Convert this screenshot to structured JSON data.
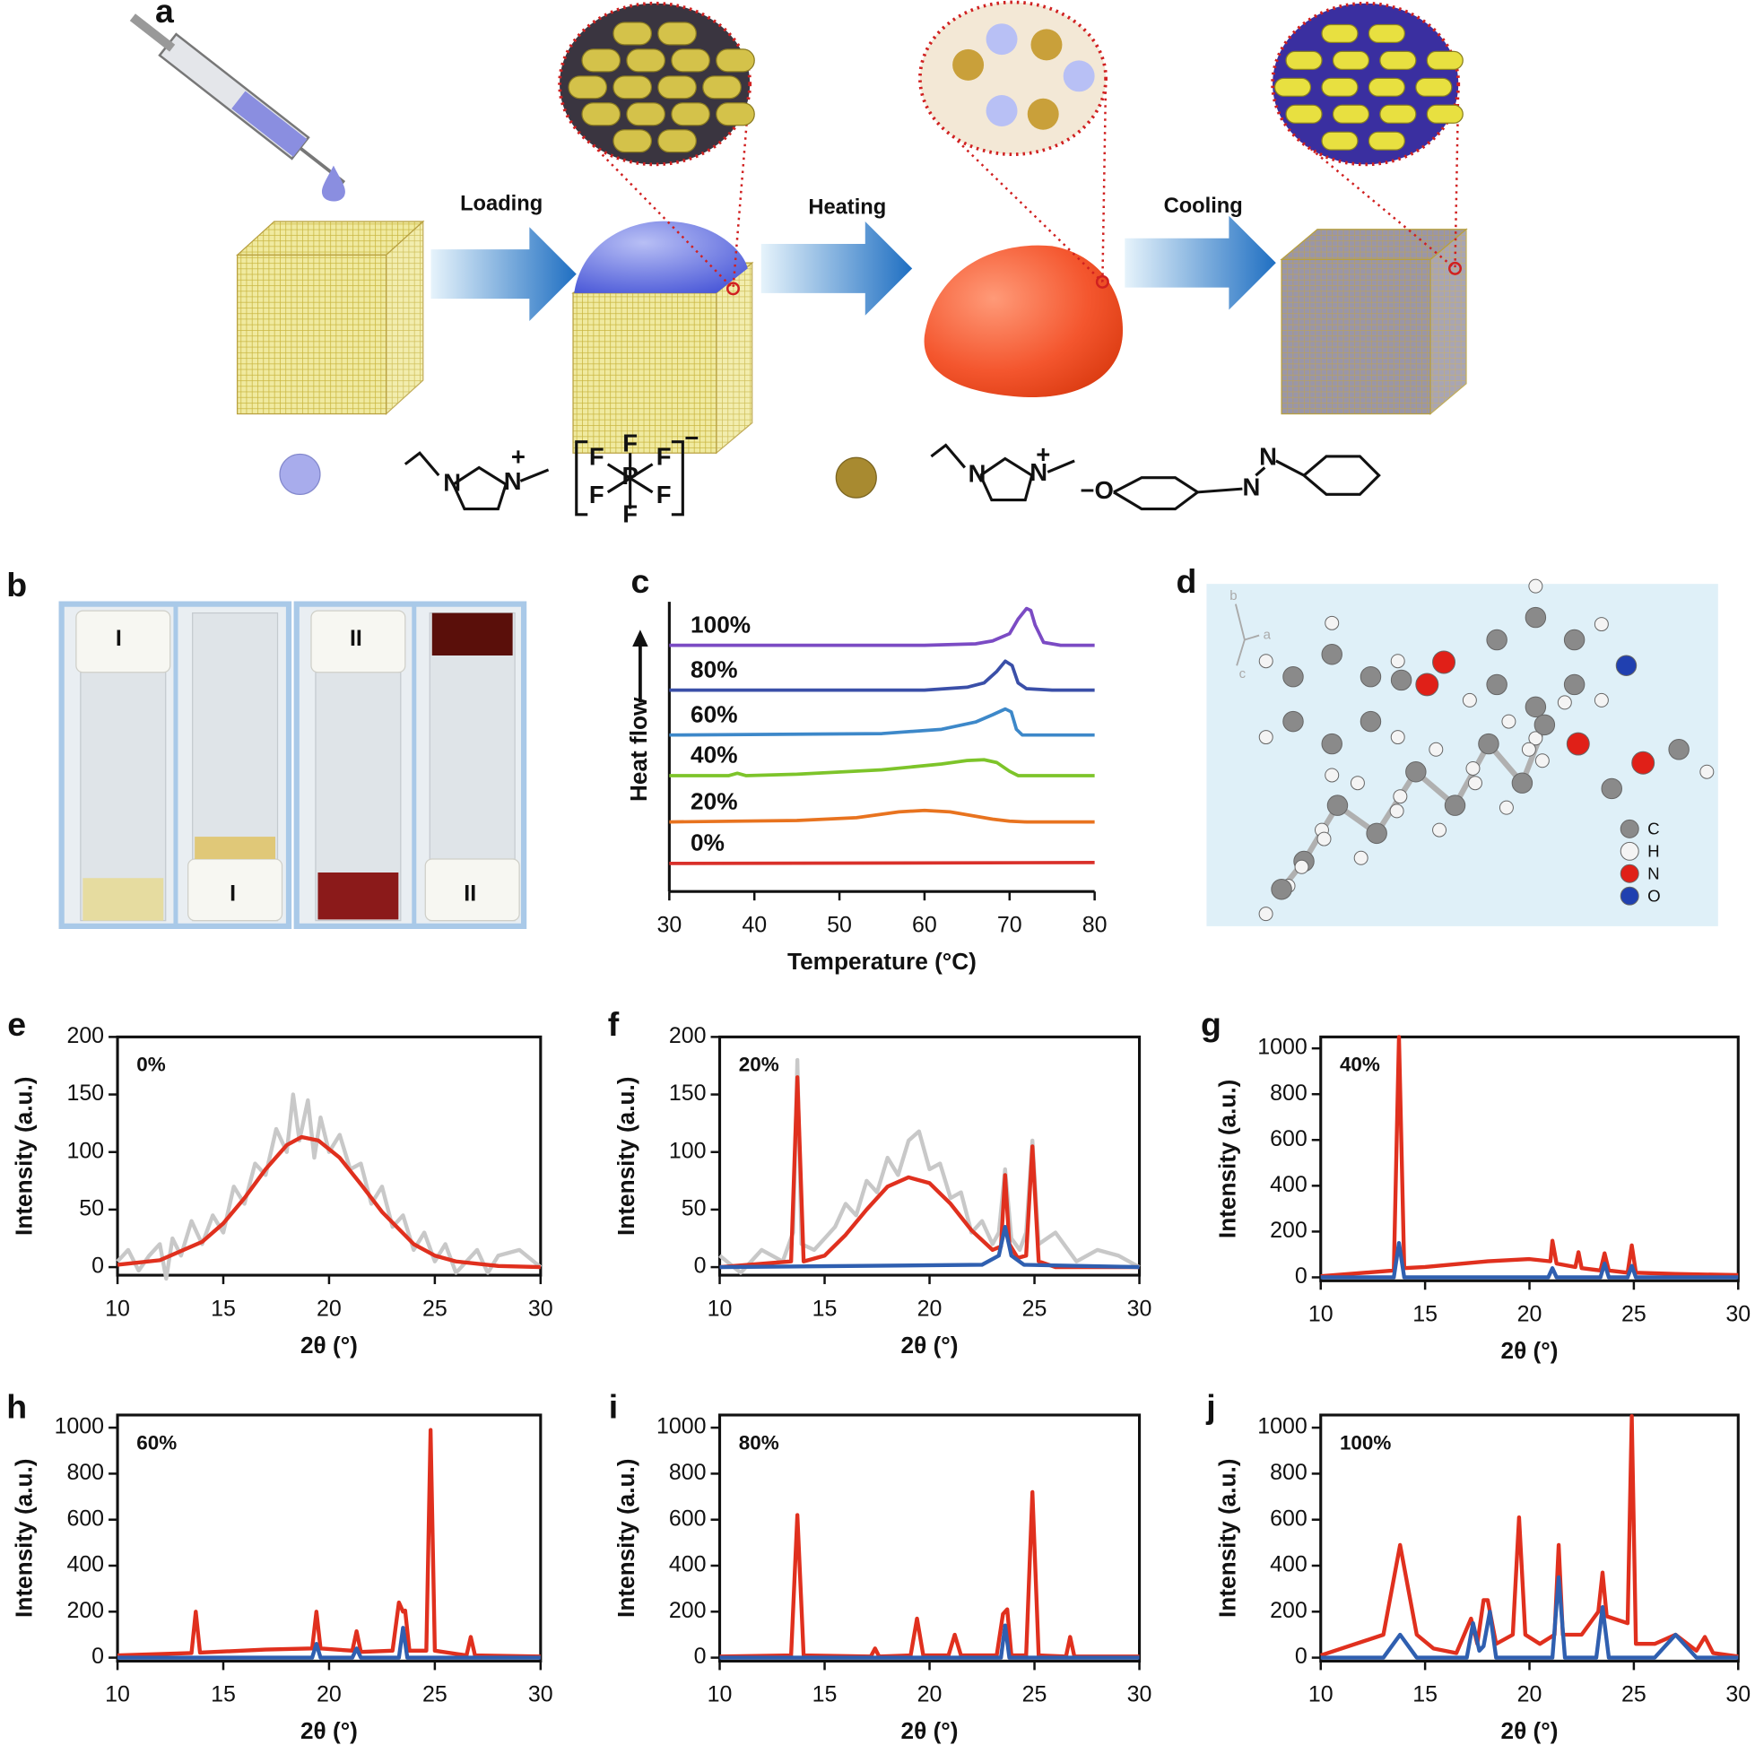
{
  "figure": {
    "panel_letters": [
      "a",
      "b",
      "c",
      "d",
      "e",
      "f",
      "g",
      "h",
      "i",
      "j"
    ],
    "schematic_steps": [
      "Loading",
      "Heating",
      "Cooling"
    ],
    "chem_labels": [
      "N",
      "N",
      "+",
      "F",
      "F",
      "F",
      "P",
      "F",
      "F",
      "F",
      "−",
      "N",
      "N",
      "+",
      "−O",
      "N",
      "N"
    ],
    "vial_labels": [
      "I",
      "I",
      "II",
      "II"
    ],
    "crystal_axes": [
      "b",
      "a",
      "c"
    ],
    "element_legend": [
      "C",
      "H",
      "N",
      "O"
    ]
  },
  "chart_data": [
    {
      "type": "line",
      "xlabel": "Temperature (°C)",
      "ylabel": "Heat flow",
      "xlim": [
        30,
        80
      ],
      "xticks": [
        30,
        40,
        50,
        60,
        70,
        80
      ],
      "ylim": [
        0,
        100
      ],
      "series": [
        {
          "name": "100%",
          "color": "#7b4bc4",
          "x": [
            30,
            60,
            66,
            68,
            70,
            71,
            72,
            72.5,
            73,
            74,
            76,
            80
          ],
          "values": [
            85,
            85,
            85.5,
            86.5,
            89,
            94,
            97.7,
            97,
            92,
            86,
            85,
            85
          ]
        },
        {
          "name": "80%",
          "color": "#3a4fa8",
          "x": [
            30,
            60,
            65,
            67,
            68.5,
            69.5,
            70.3,
            71,
            72,
            75,
            80
          ],
          "values": [
            69.5,
            69.5,
            70.5,
            72,
            76,
            79.5,
            78,
            72,
            70,
            69.5,
            69.5
          ]
        },
        {
          "name": "60%",
          "color": "#3d88c9",
          "x": [
            30,
            55,
            62,
            66,
            68,
            69.5,
            70.2,
            70.8,
            71.5,
            75,
            80
          ],
          "values": [
            54,
            54.5,
            56,
            58.5,
            61,
            63,
            62,
            56,
            54,
            54,
            54
          ]
        },
        {
          "name": "40%",
          "color": "#7dc42a",
          "x": [
            30,
            37,
            38,
            39,
            45,
            55,
            62,
            65,
            67,
            68.5,
            70,
            71,
            75,
            80
          ],
          "values": [
            40,
            40,
            40.8,
            40,
            40.5,
            42,
            44,
            45.2,
            45.5,
            44.5,
            41.5,
            40,
            40,
            40
          ]
        },
        {
          "name": "20%",
          "color": "#e8731f",
          "x": [
            30,
            45,
            52,
            57,
            60,
            63,
            66,
            68,
            70,
            72,
            80
          ],
          "values": [
            24,
            24.5,
            25.5,
            27.5,
            28,
            27.5,
            26,
            25,
            24.3,
            24,
            24
          ]
        },
        {
          "name": "0%",
          "color": "#d9302a",
          "x": [
            30,
            80
          ],
          "values": [
            9.7,
            10
          ]
        }
      ]
    },
    {
      "type": "line",
      "annotation": "0%",
      "xlabel": "2θ (°)",
      "ylabel": "Intensity (a.u.)",
      "xlim": [
        10,
        30
      ],
      "xticks": [
        10,
        15,
        20,
        25,
        30
      ],
      "ylim": [
        -7,
        200
      ],
      "yticks": [
        0,
        50,
        100,
        150,
        200
      ],
      "series": [
        {
          "color": "#c8c8c8",
          "x": [
            10,
            10.5,
            11,
            11.5,
            12,
            12.3,
            12.6,
            13,
            13.5,
            14,
            14.5,
            15,
            15.5,
            16,
            16.5,
            17,
            17.5,
            18,
            18.3,
            18.6,
            19,
            19.3,
            19.6,
            20,
            20.5,
            21,
            21.5,
            22,
            22.5,
            23,
            23.5,
            24,
            24.5,
            25,
            25.5,
            26,
            27,
            27.5,
            28,
            29,
            30
          ],
          "values": [
            5,
            15,
            -3,
            10,
            20,
            -10,
            25,
            10,
            40,
            20,
            45,
            30,
            70,
            55,
            90,
            80,
            120,
            100,
            150,
            110,
            145,
            95,
            130,
            100,
            115,
            85,
            90,
            55,
            70,
            35,
            45,
            15,
            30,
            5,
            20,
            -5,
            15,
            -5,
            10,
            15,
            0
          ]
        },
        {
          "color": "#e0301e",
          "x": [
            10,
            12,
            14,
            15,
            16,
            17,
            18,
            18.7,
            19.5,
            20.5,
            21.5,
            22.5,
            24,
            25,
            26,
            28,
            30
          ],
          "values": [
            2,
            6,
            22,
            38,
            60,
            85,
            106,
            113,
            110,
            95,
            72,
            48,
            20,
            10,
            5,
            1,
            0
          ]
        }
      ]
    },
    {
      "type": "line",
      "annotation": "20%",
      "xlabel": "2θ (°)",
      "ylabel": "Intensity (a.u.)",
      "xlim": [
        10,
        30
      ],
      "xticks": [
        10,
        15,
        20,
        25,
        30
      ],
      "ylim": [
        -7,
        200
      ],
      "yticks": [
        0,
        50,
        100,
        150,
        200
      ],
      "series": [
        {
          "color": "#c8c8c8",
          "x": [
            10,
            11,
            12,
            13,
            13.5,
            13.7,
            13.9,
            14.5,
            15,
            15.5,
            16,
            16.5,
            17,
            17.5,
            18,
            18.5,
            19,
            19.5,
            20,
            20.5,
            21,
            21.5,
            22,
            22.5,
            23,
            23.3,
            23.6,
            23.9,
            24.3,
            24.6,
            24.9,
            25.2,
            26,
            27,
            28,
            29,
            30
          ],
          "values": [
            10,
            -5,
            15,
            5,
            30,
            180,
            20,
            15,
            25,
            35,
            55,
            45,
            75,
            65,
            95,
            80,
            110,
            118,
            85,
            90,
            60,
            65,
            30,
            40,
            20,
            30,
            85,
            25,
            15,
            30,
            110,
            20,
            30,
            5,
            15,
            10,
            0
          ]
        },
        {
          "color": "#e0301e",
          "x": [
            10,
            13.4,
            13.7,
            14.0,
            15,
            16,
            17,
            18,
            19,
            20,
            21,
            22,
            23,
            23.4,
            23.6,
            23.8,
            24.2,
            24.6,
            24.9,
            25.2,
            26,
            30
          ],
          "values": [
            0,
            5,
            165,
            5,
            10,
            28,
            50,
            70,
            78,
            73,
            55,
            32,
            15,
            18,
            80,
            20,
            8,
            10,
            105,
            5,
            0,
            0
          ]
        },
        {
          "color": "#2f5fb0",
          "x": [
            10,
            22.5,
            23.3,
            23.6,
            23.9,
            24.5,
            30
          ],
          "values": [
            0,
            2,
            10,
            35,
            10,
            2,
            0
          ]
        }
      ]
    },
    {
      "type": "line",
      "annotation": "40%",
      "xlabel": "2θ (°)",
      "ylabel": "Intensity (a.u.)",
      "xlim": [
        10,
        30
      ],
      "xticks": [
        10,
        15,
        20,
        25,
        30
      ],
      "ylim": [
        -15,
        1050
      ],
      "yticks": [
        0,
        200,
        400,
        600,
        800,
        1000
      ],
      "series": [
        {
          "color": "#e0301e",
          "x": [
            10,
            13.5,
            13.75,
            14.0,
            15,
            18,
            20,
            21,
            21.1,
            21.3,
            22.2,
            22.35,
            22.5,
            23.4,
            23.6,
            23.8,
            24.7,
            24.9,
            25.1,
            27,
            30
          ],
          "values": [
            5,
            30,
            1050,
            40,
            45,
            70,
            80,
            70,
            160,
            60,
            45,
            110,
            40,
            30,
            105,
            30,
            20,
            140,
            20,
            15,
            10
          ]
        },
        {
          "color": "#2f5fb0",
          "x": [
            10,
            13.5,
            13.75,
            14,
            20.9,
            21.1,
            21.3,
            23.4,
            23.6,
            23.8,
            24.7,
            24.9,
            25.1,
            30
          ],
          "values": [
            0,
            0,
            150,
            0,
            0,
            40,
            0,
            0,
            60,
            0,
            0,
            50,
            0,
            0
          ]
        }
      ]
    },
    {
      "type": "line",
      "annotation": "60%",
      "xlabel": "2θ (°)",
      "ylabel": "Intensity (a.u.)",
      "xlim": [
        10,
        30
      ],
      "xticks": [
        10,
        15,
        20,
        25,
        30
      ],
      "ylim": [
        -15,
        1055
      ],
      "yticks": [
        0,
        200,
        400,
        600,
        800,
        1000
      ],
      "series": [
        {
          "color": "#e0301e",
          "x": [
            10,
            13.5,
            13.7,
            13.9,
            17,
            19.2,
            19.4,
            19.6,
            21.1,
            21.3,
            21.5,
            23,
            23.3,
            23.5,
            23.6,
            23.8,
            24.6,
            24.8,
            25.0,
            26.5,
            26.7,
            26.9,
            30
          ],
          "values": [
            10,
            20,
            200,
            22,
            35,
            40,
            200,
            40,
            30,
            115,
            25,
            30,
            240,
            200,
            205,
            30,
            30,
            990,
            30,
            10,
            90,
            10,
            5
          ]
        },
        {
          "color": "#2f5fb0",
          "x": [
            10,
            19.2,
            19.4,
            19.6,
            21.1,
            21.3,
            21.5,
            23.3,
            23.5,
            23.7,
            30
          ],
          "values": [
            0,
            0,
            60,
            0,
            0,
            40,
            0,
            0,
            130,
            0,
            0
          ]
        }
      ]
    },
    {
      "type": "line",
      "annotation": "80%",
      "xlabel": "2θ (°)",
      "ylabel": "Intensity (a.u.)",
      "xlim": [
        10,
        30
      ],
      "xticks": [
        10,
        15,
        20,
        25,
        30
      ],
      "ylim": [
        -15,
        1055
      ],
      "yticks": [
        0,
        200,
        400,
        600,
        800,
        1000
      ],
      "series": [
        {
          "color": "#e0301e",
          "x": [
            10,
            13.4,
            13.7,
            14.0,
            17.2,
            17.4,
            17.6,
            19.1,
            19.4,
            19.7,
            20.9,
            21.2,
            21.5,
            23.2,
            23.5,
            23.7,
            23.9,
            24.6,
            24.9,
            25.2,
            26.5,
            26.7,
            26.9,
            30
          ],
          "values": [
            5,
            10,
            620,
            10,
            5,
            40,
            5,
            10,
            170,
            10,
            10,
            100,
            10,
            10,
            190,
            210,
            10,
            10,
            720,
            10,
            5,
            90,
            5,
            5
          ]
        },
        {
          "color": "#2f5fb0",
          "x": [
            10,
            23.4,
            23.6,
            23.8,
            30
          ],
          "values": [
            0,
            0,
            140,
            0,
            0
          ]
        }
      ]
    },
    {
      "type": "line",
      "annotation": "100%",
      "xlabel": "2θ (°)",
      "ylabel": "Intensity (a.u.)",
      "xlim": [
        10,
        30
      ],
      "xticks": [
        10,
        15,
        20,
        25,
        30
      ],
      "ylim": [
        -15,
        1055
      ],
      "yticks": [
        0,
        200,
        400,
        600,
        800,
        1000
      ],
      "series": [
        {
          "color": "#e0301e",
          "x": [
            10,
            13,
            13.8,
            14.6,
            15.4,
            16.5,
            17.2,
            17.5,
            17.8,
            18.0,
            18.4,
            19.2,
            19.5,
            19.8,
            20.5,
            21.2,
            21.4,
            21.6,
            22.5,
            23.3,
            23.5,
            23.7,
            24.7,
            24.9,
            25.1,
            26,
            27,
            28,
            28.4,
            28.8,
            30
          ],
          "values": [
            10,
            100,
            490,
            100,
            40,
            20,
            170,
            60,
            250,
            250,
            60,
            100,
            610,
            100,
            60,
            100,
            490,
            100,
            100,
            200,
            370,
            180,
            150,
            1050,
            60,
            60,
            100,
            30,
            90,
            20,
            5
          ]
        },
        {
          "color": "#2f5fb0",
          "x": [
            10,
            13,
            13.8,
            14.6,
            17,
            17.3,
            17.6,
            17.8,
            18.1,
            18.4,
            21.1,
            21.4,
            21.7,
            23.2,
            23.5,
            23.8,
            26,
            27,
            28,
            30
          ],
          "values": [
            0,
            0,
            100,
            0,
            0,
            150,
            30,
            50,
            200,
            0,
            0,
            350,
            0,
            0,
            220,
            0,
            0,
            100,
            0,
            0
          ]
        }
      ]
    }
  ]
}
